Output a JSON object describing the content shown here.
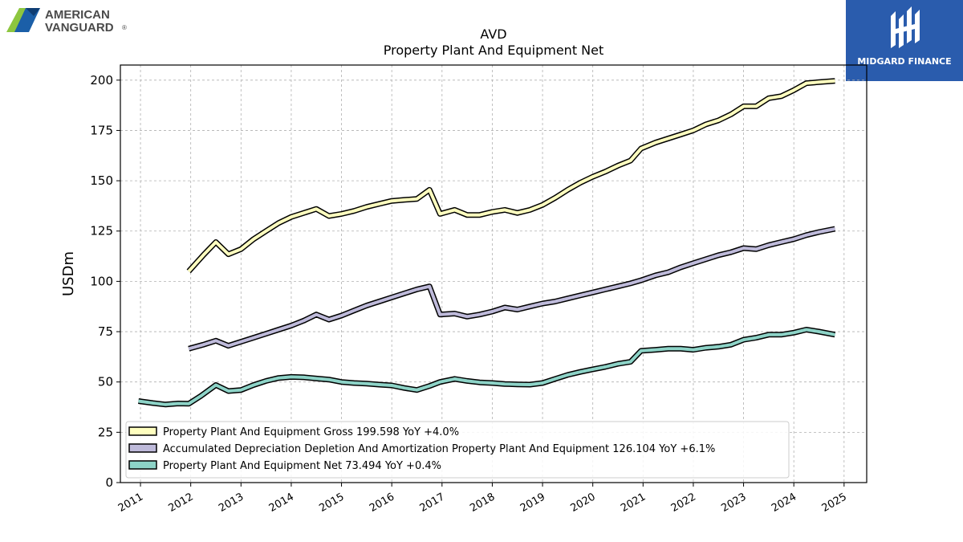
{
  "logo_left": {
    "name": "AMERICAN VANGUARD",
    "line1": "AMERICAN",
    "line2": "VANGUARD",
    "mark": "®"
  },
  "brand_right": {
    "label": "MIDGARD FINANCE"
  },
  "colors": {
    "gross": "#ffffbf",
    "accum": "#bebada",
    "net": "#8dd3c7",
    "brand_bg": "#2a5cad"
  },
  "chart_data": {
    "type": "line",
    "title": "AVD",
    "subtitle": "Property Plant And Equipment Net",
    "xlabel": "",
    "ylabel": "USDm",
    "xlim": [
      2010.6,
      2025.45
    ],
    "ylim": [
      0,
      207.5
    ],
    "yticks": [
      0,
      25,
      50,
      75,
      100,
      125,
      150,
      175,
      200
    ],
    "xticks": [
      2011,
      2012,
      2013,
      2014,
      2015,
      2016,
      2017,
      2018,
      2019,
      2020,
      2021,
      2022,
      2023,
      2024,
      2025
    ],
    "grid": true,
    "legend_position": "lower-left",
    "series": [
      {
        "name": "Property Plant And Equipment Gross",
        "legend": "Property Plant And Equipment Gross  199.598 YoY +4.0%",
        "color": "#ffffbf",
        "points": [
          [
            2011.96,
            105
          ],
          [
            2012.25,
            113
          ],
          [
            2012.5,
            119.5
          ],
          [
            2012.75,
            113.5
          ],
          [
            2013.0,
            116
          ],
          [
            2013.25,
            121
          ],
          [
            2013.5,
            125
          ],
          [
            2013.75,
            129
          ],
          [
            2014.0,
            132
          ],
          [
            2014.25,
            134
          ],
          [
            2014.5,
            136
          ],
          [
            2014.75,
            132.5
          ],
          [
            2015.0,
            133.5
          ],
          [
            2015.25,
            135
          ],
          [
            2015.5,
            137
          ],
          [
            2015.75,
            138.5
          ],
          [
            2016.0,
            140
          ],
          [
            2016.25,
            140.5
          ],
          [
            2016.5,
            141
          ],
          [
            2016.75,
            145.5
          ],
          [
            2016.96,
            133.5
          ],
          [
            2017.25,
            135.5
          ],
          [
            2017.5,
            133
          ],
          [
            2017.75,
            133
          ],
          [
            2018.0,
            134.5
          ],
          [
            2018.25,
            135.5
          ],
          [
            2018.5,
            134
          ],
          [
            2018.75,
            135.5
          ],
          [
            2019.0,
            138
          ],
          [
            2019.25,
            141.5
          ],
          [
            2019.5,
            145.5
          ],
          [
            2019.75,
            149
          ],
          [
            2020.0,
            152
          ],
          [
            2020.25,
            154.5
          ],
          [
            2020.5,
            157.5
          ],
          [
            2020.75,
            160
          ],
          [
            2020.96,
            166
          ],
          [
            2021.25,
            169
          ],
          [
            2021.5,
            171
          ],
          [
            2021.75,
            173
          ],
          [
            2022.0,
            175
          ],
          [
            2022.25,
            178
          ],
          [
            2022.5,
            180
          ],
          [
            2022.75,
            183
          ],
          [
            2023.0,
            187
          ],
          [
            2023.25,
            187
          ],
          [
            2023.5,
            191
          ],
          [
            2023.75,
            192
          ],
          [
            2024.0,
            195
          ],
          [
            2024.25,
            198.5
          ],
          [
            2024.5,
            199
          ],
          [
            2024.82,
            199.6
          ]
        ]
      },
      {
        "name": "Accumulated Depreciation Depletion And Amortization Property Plant And Equipment",
        "legend": "Accumulated Depreciation Depletion And Amortization Property Plant And Equipment  126.104 YoY +6.1%",
        "color": "#bebada",
        "points": [
          [
            2011.96,
            66.5
          ],
          [
            2012.25,
            68.5
          ],
          [
            2012.5,
            70.5
          ],
          [
            2012.75,
            68
          ],
          [
            2013.0,
            70
          ],
          [
            2013.25,
            72
          ],
          [
            2013.5,
            74
          ],
          [
            2013.75,
            76
          ],
          [
            2014.0,
            78
          ],
          [
            2014.25,
            80.5
          ],
          [
            2014.5,
            83.5
          ],
          [
            2014.75,
            81
          ],
          [
            2015.0,
            83
          ],
          [
            2015.25,
            85.5
          ],
          [
            2015.5,
            88
          ],
          [
            2015.75,
            90
          ],
          [
            2016.0,
            92
          ],
          [
            2016.25,
            94
          ],
          [
            2016.5,
            96
          ],
          [
            2016.75,
            97.5
          ],
          [
            2016.96,
            83.5
          ],
          [
            2017.25,
            84
          ],
          [
            2017.5,
            82.5
          ],
          [
            2017.75,
            83.5
          ],
          [
            2018.0,
            85
          ],
          [
            2018.25,
            87
          ],
          [
            2018.5,
            86
          ],
          [
            2018.75,
            87.5
          ],
          [
            2019.0,
            89
          ],
          [
            2019.25,
            90
          ],
          [
            2019.5,
            91.5
          ],
          [
            2019.75,
            93
          ],
          [
            2020.0,
            94.5
          ],
          [
            2020.25,
            96
          ],
          [
            2020.5,
            97.5
          ],
          [
            2020.75,
            99
          ],
          [
            2020.96,
            100.5
          ],
          [
            2021.25,
            103
          ],
          [
            2021.5,
            104.5
          ],
          [
            2021.75,
            107
          ],
          [
            2022.0,
            109
          ],
          [
            2022.25,
            111
          ],
          [
            2022.5,
            113
          ],
          [
            2022.75,
            114.5
          ],
          [
            2023.0,
            116.5
          ],
          [
            2023.25,
            116
          ],
          [
            2023.5,
            118
          ],
          [
            2023.75,
            119.5
          ],
          [
            2024.0,
            121
          ],
          [
            2024.25,
            123
          ],
          [
            2024.5,
            124.5
          ],
          [
            2024.82,
            126.1
          ]
        ]
      },
      {
        "name": "Property Plant And Equipment Net",
        "legend": "Property Plant And Equipment Net  73.494 YoY +0.4%",
        "color": "#8dd3c7",
        "points": [
          [
            2010.96,
            40.5
          ],
          [
            2011.25,
            39.5
          ],
          [
            2011.5,
            38.8
          ],
          [
            2011.75,
            39.3
          ],
          [
            2011.96,
            39.2
          ],
          [
            2012.2,
            43
          ],
          [
            2012.5,
            48.5
          ],
          [
            2012.75,
            45.5
          ],
          [
            2013.0,
            46
          ],
          [
            2013.25,
            48.5
          ],
          [
            2013.5,
            50.5
          ],
          [
            2013.75,
            52
          ],
          [
            2014.0,
            52.5
          ],
          [
            2014.25,
            52.3
          ],
          [
            2014.5,
            51.7
          ],
          [
            2014.75,
            51.2
          ],
          [
            2015.0,
            50
          ],
          [
            2015.25,
            49.5
          ],
          [
            2015.5,
            49.2
          ],
          [
            2015.75,
            48.7
          ],
          [
            2016.0,
            48.3
          ],
          [
            2016.25,
            47
          ],
          [
            2016.5,
            46
          ],
          [
            2016.75,
            48
          ],
          [
            2016.96,
            50
          ],
          [
            2017.25,
            51.5
          ],
          [
            2017.5,
            50.5
          ],
          [
            2017.75,
            49.8
          ],
          [
            2018.0,
            49.5
          ],
          [
            2018.25,
            49
          ],
          [
            2018.5,
            48.8
          ],
          [
            2018.75,
            48.7
          ],
          [
            2019.0,
            49.5
          ],
          [
            2019.25,
            51.5
          ],
          [
            2019.5,
            53.5
          ],
          [
            2019.75,
            55
          ],
          [
            2020.0,
            56.3
          ],
          [
            2020.25,
            57.5
          ],
          [
            2020.5,
            59
          ],
          [
            2020.75,
            60
          ],
          [
            2020.96,
            65.5
          ],
          [
            2021.25,
            66
          ],
          [
            2021.5,
            66.5
          ],
          [
            2021.75,
            66.5
          ],
          [
            2022.0,
            66
          ],
          [
            2022.25,
            67
          ],
          [
            2022.5,
            67.5
          ],
          [
            2022.75,
            68.5
          ],
          [
            2023.0,
            71
          ],
          [
            2023.25,
            72
          ],
          [
            2023.5,
            73.5
          ],
          [
            2023.75,
            73.5
          ],
          [
            2024.0,
            74.5
          ],
          [
            2024.25,
            76
          ],
          [
            2024.5,
            75
          ],
          [
            2024.82,
            73.5
          ]
        ]
      }
    ]
  }
}
